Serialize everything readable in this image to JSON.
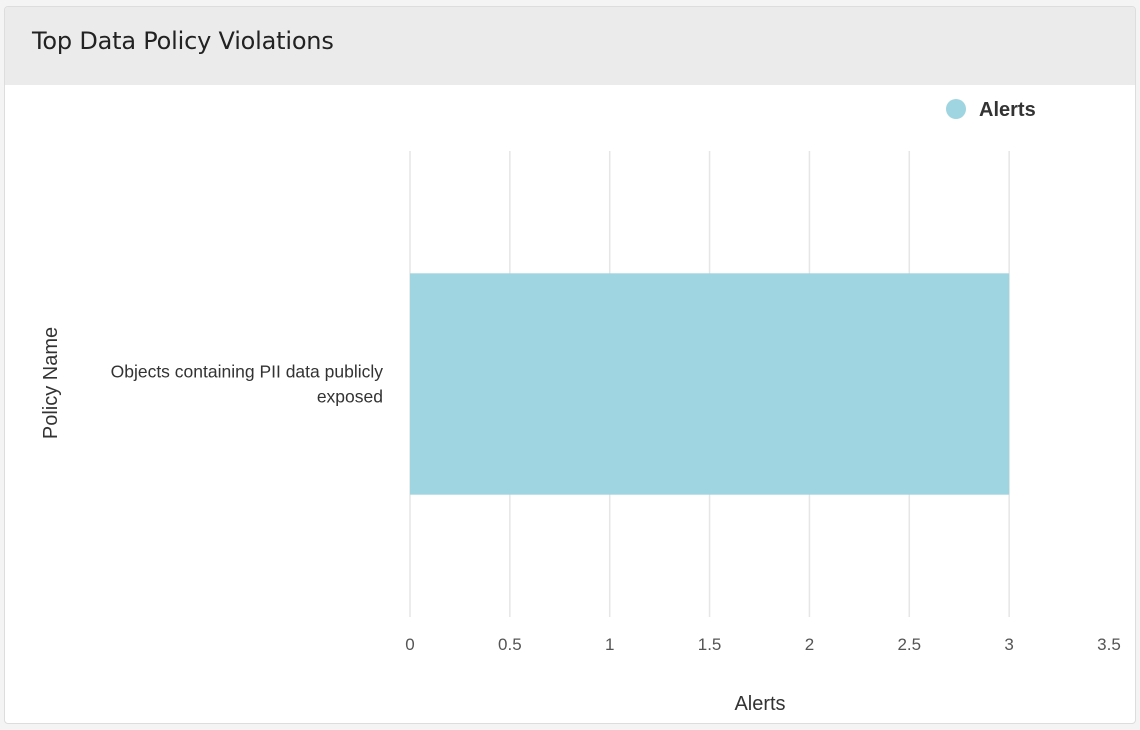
{
  "card": {
    "title": "Top Data Policy Violations"
  },
  "chart_data": {
    "type": "bar",
    "orientation": "horizontal",
    "categories": [
      "Objects containing PII data publicly exposed"
    ],
    "category_label_lines": [
      [
        "Objects containing PII data publicly",
        "exposed"
      ]
    ],
    "series": [
      {
        "name": "Alerts",
        "values": [
          3
        ],
        "color": "#9fd5e0"
      }
    ],
    "xlabel": "Alerts",
    "ylabel": "Policy Name",
    "xlim": [
      0,
      3.5
    ],
    "xticks": [
      0,
      0.5,
      1,
      1.5,
      2,
      2.5,
      3,
      3.5
    ],
    "xtick_labels": [
      "0",
      "0.5",
      "1",
      "1.5",
      "2",
      "2.5",
      "3",
      "3.5"
    ],
    "grid": true,
    "legend": {
      "position": "top-right",
      "label": "Alerts"
    }
  }
}
